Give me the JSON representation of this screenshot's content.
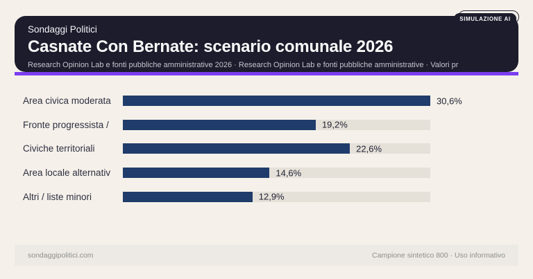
{
  "badge": {
    "label": "SIMULAZIONE AI"
  },
  "header": {
    "kicker": "Sondaggi Politici",
    "title": "Casnate Con Bernate: scenario comunale 2026",
    "subtitle": "Research Opinion Lab e fonti pubbliche amministrative 2026 · Research Opinion Lab e fonti pubbliche amministrative · Valori pr"
  },
  "chart_data": {
    "type": "bar",
    "orientation": "horizontal",
    "title": "Casnate Con Bernate: scenario comunale 2026",
    "categories": [
      "Area civica moderata",
      "Fronte progressista /",
      "Civiche territoriali",
      "Area locale alternativ",
      "Altri / liste minori"
    ],
    "values": [
      30.6,
      19.2,
      22.6,
      14.6,
      12.9
    ],
    "value_labels": [
      "30,6%",
      "19,2%",
      "22,6%",
      "14,6%",
      "12,9%"
    ],
    "xlim": [
      0,
      30.6
    ],
    "grid": false,
    "legend": false,
    "bar_color": "#1f3c6b",
    "track_color": "#e5e1d9"
  },
  "footer": {
    "left": "sondaggipolitici.com",
    "right": "Campione sintetico 800 · Uso informativo"
  },
  "colors": {
    "page_bg": "#f5f1ea",
    "header_bg": "#1c1c2c",
    "accent": "#7b3df0",
    "bar": "#1f3c6b",
    "track": "#e5e1d9",
    "footer_bg": "#edeae5",
    "footer_text": "#8e8e8c",
    "label_text": "#2e2e40",
    "title_text": "#fafafa",
    "subtitle_text": "#c4c4cf"
  }
}
